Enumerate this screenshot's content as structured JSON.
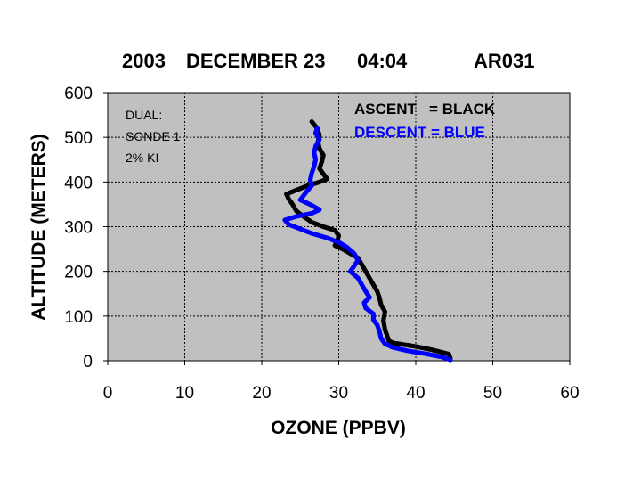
{
  "chart_data": {
    "type": "scatter",
    "title_parts": [
      "2003",
      "DECEMBER 23",
      "04:04",
      "AR031"
    ],
    "xlabel": "OZONE (PPBV)",
    "ylabel": "ALTITUDE (METERS)",
    "xlim": [
      0,
      60
    ],
    "ylim": [
      0,
      600
    ],
    "xticks": [
      "0",
      "10",
      "20",
      "30",
      "40",
      "50",
      "60"
    ],
    "yticks": [
      "0",
      "100",
      "200",
      "300",
      "400",
      "500",
      "600"
    ],
    "grid": true,
    "background": "#c0c0c0",
    "annotation_lines": [
      "DUAL:",
      "SONDE 1",
      "2% KI"
    ],
    "legend": [
      "ASCENT   = BLACK",
      "DESCENT = BLUE"
    ],
    "series": [
      {
        "name": "ASCENT",
        "color": "#000000",
        "points": [
          [
            44.5,
            5
          ],
          [
            44.3,
            15
          ],
          [
            42,
            25
          ],
          [
            40,
            32
          ],
          [
            37,
            40
          ],
          [
            36.5,
            45
          ],
          [
            36.3,
            55
          ],
          [
            36,
            70
          ],
          [
            35.8,
            90
          ],
          [
            36,
            110
          ],
          [
            35.5,
            125
          ],
          [
            35.3,
            140
          ],
          [
            35,
            155
          ],
          [
            34.5,
            170
          ],
          [
            34,
            185
          ],
          [
            33.5,
            200
          ],
          [
            33,
            215
          ],
          [
            32.5,
            230
          ],
          [
            31.5,
            240
          ],
          [
            30.5,
            250
          ],
          [
            29.5,
            258
          ],
          [
            29.8,
            268
          ],
          [
            30,
            280
          ],
          [
            29.5,
            292
          ],
          [
            28,
            300
          ],
          [
            26.5,
            310
          ],
          [
            25.5,
            322
          ],
          [
            24.5,
            335
          ],
          [
            24,
            350
          ],
          [
            23.5,
            362
          ],
          [
            23.2,
            373
          ],
          [
            24.5,
            382
          ],
          [
            26,
            392
          ],
          [
            27.5,
            400
          ],
          [
            28.5,
            407
          ],
          [
            28,
            418
          ],
          [
            27.5,
            430
          ],
          [
            27.8,
            445
          ],
          [
            28,
            460
          ],
          [
            27.5,
            475
          ],
          [
            27.3,
            490
          ],
          [
            27.5,
            505
          ],
          [
            27.2,
            520
          ],
          [
            26.5,
            535
          ]
        ]
      },
      {
        "name": "DESCENT",
        "color": "#0000ff",
        "points": [
          [
            44.5,
            2
          ],
          [
            43.5,
            8
          ],
          [
            41.5,
            15
          ],
          [
            39,
            22
          ],
          [
            37,
            30
          ],
          [
            36,
            38
          ],
          [
            35.5,
            50
          ],
          [
            35.3,
            65
          ],
          [
            35,
            80
          ],
          [
            34.5,
            92
          ],
          [
            34.5,
            105
          ],
          [
            33.5,
            118
          ],
          [
            33.3,
            130
          ],
          [
            34,
            142
          ],
          [
            33.5,
            155
          ],
          [
            33,
            170
          ],
          [
            32.5,
            185
          ],
          [
            31.5,
            200
          ],
          [
            32,
            212
          ],
          [
            32.5,
            225
          ],
          [
            32,
            240
          ],
          [
            31,
            255
          ],
          [
            30,
            265
          ],
          [
            28.5,
            275
          ],
          [
            26.5,
            285
          ],
          [
            25,
            295
          ],
          [
            23.5,
            305
          ],
          [
            23,
            315
          ],
          [
            24.5,
            323
          ],
          [
            26.5,
            330
          ],
          [
            27.5,
            338
          ],
          [
            26.5,
            348
          ],
          [
            25,
            360
          ],
          [
            25.8,
            378
          ],
          [
            26.5,
            392
          ],
          [
            26.3,
            405
          ],
          [
            26.5,
            420
          ],
          [
            26.8,
            435
          ],
          [
            27,
            450
          ],
          [
            26.8,
            465
          ],
          [
            27,
            480
          ],
          [
            27.5,
            495
          ],
          [
            27,
            510
          ],
          [
            27.2,
            520
          ]
        ]
      }
    ]
  }
}
